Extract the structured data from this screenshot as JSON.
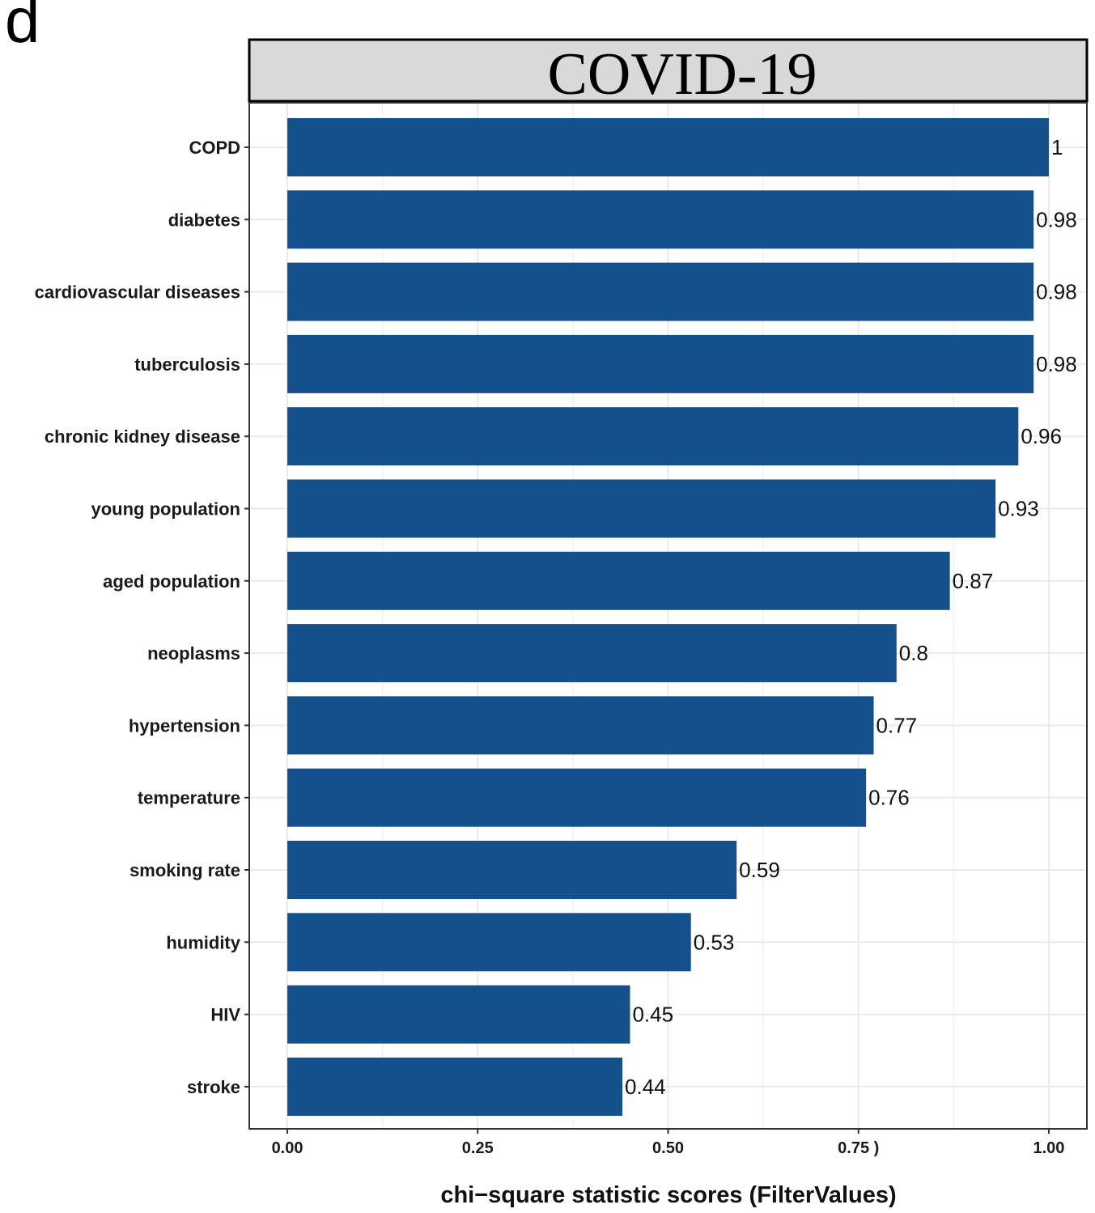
{
  "panel_letter": "d",
  "chart_data": {
    "type": "bar",
    "orientation": "horizontal",
    "facet_title": "COVID-19",
    "categories": [
      "COPD",
      "diabetes",
      "cardiovascular diseases",
      "tuberculosis",
      "chronic kidney disease",
      "young population",
      "aged population",
      "neoplasms",
      "hypertension",
      "temperature",
      "smoking rate",
      "humidity",
      "HIV",
      "stroke"
    ],
    "values": [
      1,
      0.98,
      0.98,
      0.98,
      0.96,
      0.93,
      0.87,
      0.8,
      0.77,
      0.76,
      0.59,
      0.53,
      0.45,
      0.44
    ],
    "value_labels": [
      "1",
      "0.98",
      "0.98",
      "0.98",
      "0.96",
      "0.93",
      "0.87",
      "0.8",
      "0.77",
      "0.76",
      "0.59",
      "0.53",
      "0.45",
      "0.44"
    ],
    "xlabel": "chi−square statistic scores (FilterValues)",
    "ylabel": "",
    "xlim": [
      -0.05,
      1.05
    ],
    "xticks": [
      0,
      0.25,
      0.5,
      0.75,
      1
    ],
    "xtick_labels": [
      "0.00",
      "0.25",
      "0.50",
      "0.75 )",
      "1.00"
    ],
    "grid": true,
    "legend": "none",
    "colors": {
      "bar": "#14518c",
      "strip_background": "#d9d9d9",
      "grid": "#ebebeb",
      "panel_border": "#333333"
    }
  }
}
